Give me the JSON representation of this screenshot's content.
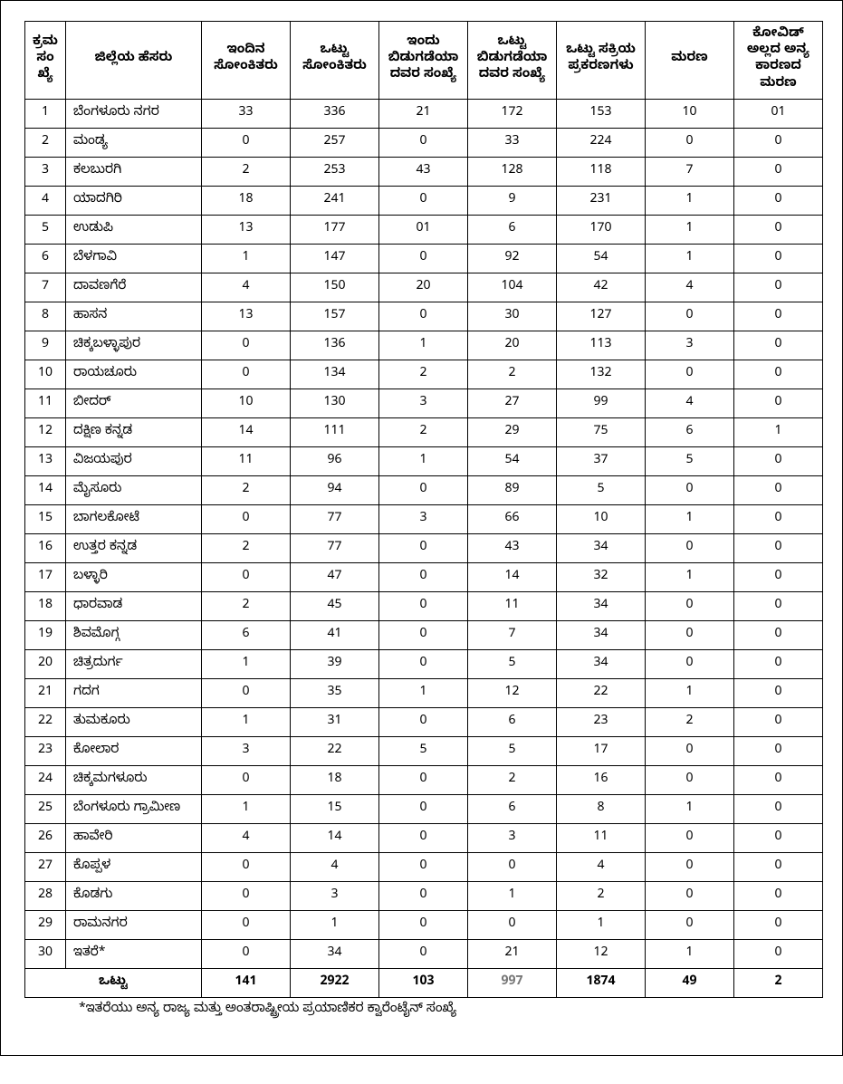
{
  "table": {
    "columns": [
      "ಕ್ರಮ ಸಂಖ್ಯೆ",
      "ಜಿಲ್ಲೆಯ ಹೆಸರು",
      "ಇಂದಿನ ಸೋಂಕಿತರು",
      "ಒಟ್ಟು ಸೋಂಕಿತರು",
      "ಇಂದು ಬಿಡುಗಡೆಯಾದವರ ಸಂಖ್ಯೆ",
      "ಒಟ್ಟು ಬಿಡುಗಡೆಯಾದವರ ಸಂಖ್ಯೆ",
      "ಒಟ್ಟು ಸಕ್ರಿಯ ಪ್ರಕರಣಗಳು",
      "ಮರಣ",
      "ಕೋವಿಡ್ ಅಲ್ಲದ ಅನ್ಯ ಕಾರಣದ ಮರಣ"
    ],
    "rows": [
      {
        "sn": "1",
        "name": "ಬೆಂಗಳೂರು ನಗರ",
        "v": [
          "33",
          "336",
          "21",
          "172",
          "153",
          "10",
          "01"
        ]
      },
      {
        "sn": "2",
        "name": "ಮಂಡ್ಯ",
        "v": [
          "0",
          "257",
          "0",
          "33",
          "224",
          "0",
          "0"
        ]
      },
      {
        "sn": "3",
        "name": "ಕಲಬುರಗಿ",
        "v": [
          "2",
          "253",
          "43",
          "128",
          "118",
          "7",
          "0"
        ]
      },
      {
        "sn": "4",
        "name": "ಯಾದಗಿರಿ",
        "v": [
          "18",
          "241",
          "0",
          "9",
          "231",
          "1",
          "0"
        ]
      },
      {
        "sn": "5",
        "name": "ಉಡುಪಿ",
        "v": [
          "13",
          "177",
          "01",
          "6",
          "170",
          "1",
          "0"
        ]
      },
      {
        "sn": "6",
        "name": "ಬೆಳಗಾವಿ",
        "v": [
          "1",
          "147",
          "0",
          "92",
          "54",
          "1",
          "0"
        ]
      },
      {
        "sn": "7",
        "name": "ದಾವಣಗೆರೆ",
        "v": [
          "4",
          "150",
          "20",
          "104",
          "42",
          "4",
          "0"
        ]
      },
      {
        "sn": "8",
        "name": "ಹಾಸನ",
        "v": [
          "13",
          "157",
          "0",
          "30",
          "127",
          "0",
          "0"
        ]
      },
      {
        "sn": "9",
        "name": "ಚಿಕ್ಕಬಳ್ಳಾಪುರ",
        "v": [
          "0",
          "136",
          "1",
          "20",
          "113",
          "3",
          "0"
        ]
      },
      {
        "sn": "10",
        "name": "ರಾಯಚೂರು",
        "v": [
          "0",
          "134",
          "2",
          "2",
          "132",
          "0",
          "0"
        ]
      },
      {
        "sn": "11",
        "name": "ಬೀದರ್",
        "v": [
          "10",
          "130",
          "3",
          "27",
          "99",
          "4",
          "0"
        ]
      },
      {
        "sn": "12",
        "name": "ದಕ್ಷಿಣ ಕನ್ನಡ",
        "v": [
          "14",
          "111",
          "2",
          "29",
          "75",
          "6",
          "1"
        ]
      },
      {
        "sn": "13",
        "name": "ವಿಜಯಪುರ",
        "v": [
          "11",
          "96",
          "1",
          "54",
          "37",
          "5",
          "0"
        ]
      },
      {
        "sn": "14",
        "name": "ಮೈಸೂರು",
        "v": [
          "2",
          "94",
          "0",
          "89",
          "5",
          "0",
          "0"
        ]
      },
      {
        "sn": "15",
        "name": "ಬಾಗಲಕೋಟೆ",
        "v": [
          "0",
          "77",
          "3",
          "66",
          "10",
          "1",
          "0"
        ]
      },
      {
        "sn": "16",
        "name": "ಉತ್ತರ ಕನ್ನಡ",
        "v": [
          "2",
          "77",
          "0",
          "43",
          "34",
          "0",
          "0"
        ]
      },
      {
        "sn": "17",
        "name": "ಬಳ್ಳಾರಿ",
        "v": [
          "0",
          "47",
          "0",
          "14",
          "32",
          "1",
          "0"
        ]
      },
      {
        "sn": "18",
        "name": "ಧಾರವಾಡ",
        "v": [
          "2",
          "45",
          "0",
          "11",
          "34",
          "0",
          "0"
        ]
      },
      {
        "sn": "19",
        "name": "ಶಿವಮೊಗ್ಗ",
        "v": [
          "6",
          "41",
          "0",
          "7",
          "34",
          "0",
          "0"
        ]
      },
      {
        "sn": "20",
        "name": "ಚಿತ್ರದುರ್ಗ",
        "v": [
          "1",
          "39",
          "0",
          "5",
          "34",
          "0",
          "0"
        ]
      },
      {
        "sn": "21",
        "name": "ಗದಗ",
        "v": [
          "0",
          "35",
          "1",
          "12",
          "22",
          "1",
          "0"
        ]
      },
      {
        "sn": "22",
        "name": "ತುಮಕೂರು",
        "v": [
          "1",
          "31",
          "0",
          "6",
          "23",
          "2",
          "0"
        ]
      },
      {
        "sn": "23",
        "name": "ಕೋಲಾರ",
        "v": [
          "3",
          "22",
          "5",
          "5",
          "17",
          "0",
          "0"
        ]
      },
      {
        "sn": "24",
        "name": "ಚಿಕ್ಕಮಗಳೂರು",
        "v": [
          "0",
          "18",
          "0",
          "2",
          "16",
          "0",
          "0"
        ]
      },
      {
        "sn": "25",
        "name": "ಬೆಂಗಳೂರು ಗ್ರಾಮೀಣ",
        "v": [
          "1",
          "15",
          "0",
          "6",
          "8",
          "1",
          "0"
        ]
      },
      {
        "sn": "26",
        "name": "ಹಾವೇರಿ",
        "v": [
          "4",
          "14",
          "0",
          "3",
          "11",
          "0",
          "0"
        ]
      },
      {
        "sn": "27",
        "name": "ಕೊಪ್ಪಳ",
        "v": [
          "0",
          "4",
          "0",
          "0",
          "4",
          "0",
          "0"
        ]
      },
      {
        "sn": "28",
        "name": "ಕೊಡಗು",
        "v": [
          "0",
          "3",
          "0",
          "1",
          "2",
          "0",
          "0"
        ]
      },
      {
        "sn": "29",
        "name": "ರಾಮನಗರ",
        "v": [
          "0",
          "1",
          "0",
          "0",
          "1",
          "0",
          "0"
        ]
      },
      {
        "sn": "30",
        "name": "ಇತರೆ*",
        "v": [
          "0",
          "34",
          "0",
          "21",
          "12",
          "1",
          "0"
        ]
      }
    ],
    "total": {
      "label": "ಒಟ್ಟು",
      "v": [
        "141",
        "2922",
        "103",
        "997",
        "1874",
        "49",
        "2"
      ],
      "faded_index": 3
    }
  },
  "footnote": "*ಇತರೆಯು ಅನ್ಯ ರಾಜ್ಯ ಮತ್ತು ಅಂತರಾಷ್ಟ್ರೀಯ ಪ್ರಯಾಣಿಕರ ಕ್ವಾರೆಂಟೈನ್ ಸಂಖ್ಯೆ"
}
